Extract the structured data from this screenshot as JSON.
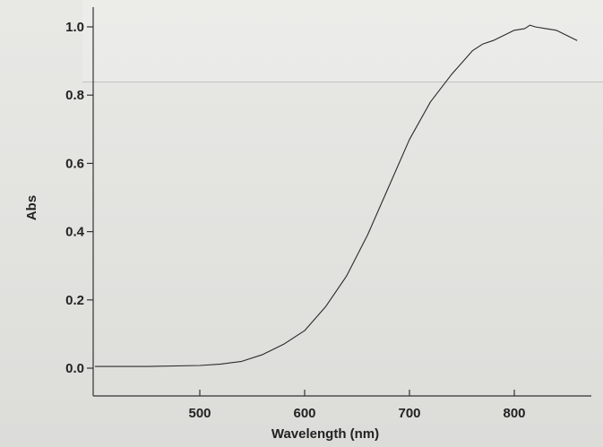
{
  "chart_data": {
    "type": "line",
    "xlabel": "Wavelength (nm)",
    "ylabel": "Abs",
    "xlim": [
      400,
      860
    ],
    "ylim": [
      -0.08,
      1.06
    ],
    "xticks": [
      500,
      600,
      700,
      800
    ],
    "yticks": [
      0.0,
      0.2,
      0.4,
      0.6,
      0.8,
      1.0
    ],
    "xtick_labels": [
      "500",
      "600",
      "700",
      "800"
    ],
    "ytick_labels": [
      "0.0",
      "0.2",
      "0.4",
      "0.6",
      "0.8",
      "1.0"
    ],
    "grid": false,
    "series": [
      {
        "color": "#2a2a2a",
        "x": [
          400,
          450,
          500,
          520,
          540,
          560,
          580,
          600,
          620,
          640,
          660,
          680,
          700,
          720,
          740,
          760,
          770,
          780,
          790,
          800,
          810,
          815,
          820,
          830,
          840,
          850,
          860
        ],
        "y": [
          0.005,
          0.005,
          0.008,
          0.012,
          0.02,
          0.04,
          0.07,
          0.11,
          0.18,
          0.27,
          0.39,
          0.53,
          0.67,
          0.78,
          0.86,
          0.93,
          0.95,
          0.96,
          0.975,
          0.99,
          0.995,
          1.005,
          1.0,
          0.995,
          0.99,
          0.975,
          0.96
        ]
      }
    ]
  }
}
